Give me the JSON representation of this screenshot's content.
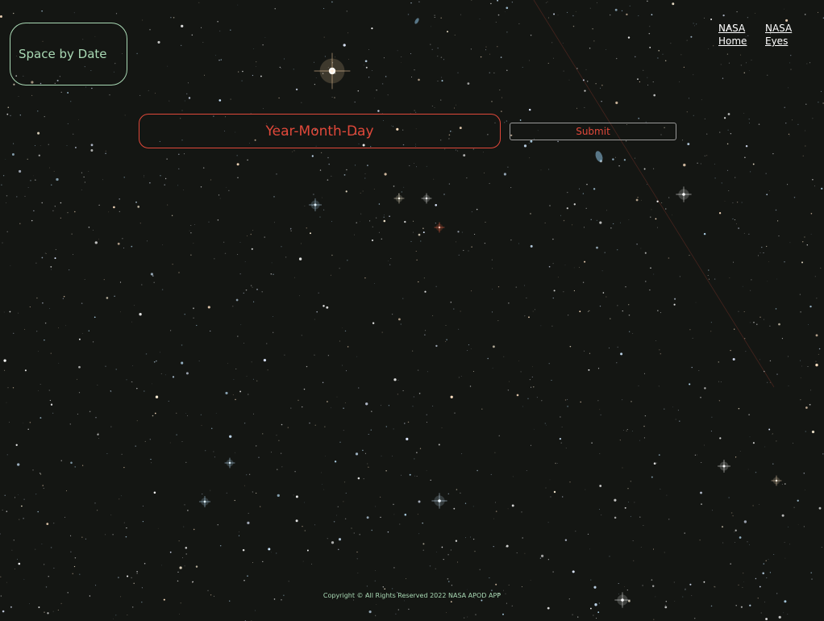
{
  "header": {
    "logo_text": "Space by Date",
    "nav": [
      {
        "label": "NASA Home"
      },
      {
        "label": "NASA Eyes"
      }
    ]
  },
  "search": {
    "placeholder": "Year-Month-Day",
    "value": "",
    "submit_label": "Submit"
  },
  "footer": {
    "copyright": "Copyright © All Rights Reserved 2022 NASA APOD APP"
  },
  "colors": {
    "background": "#141613",
    "accent_red": "#e0483a",
    "accent_green": "#a9d9b4"
  },
  "background_image": {
    "icon": "starfield-background"
  }
}
